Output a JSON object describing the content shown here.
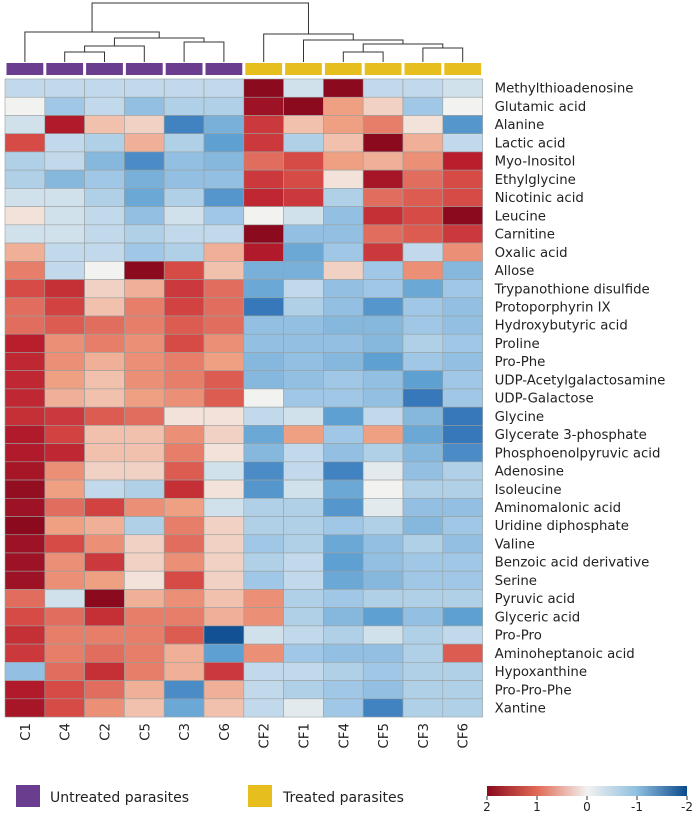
{
  "chart_data": {
    "type": "heatmap",
    "columns": [
      "C1",
      "C4",
      "C2",
      "C5",
      "C3",
      "C6",
      "CF2",
      "CF1",
      "CF4",
      "CF5",
      "CF3",
      "CF6"
    ],
    "column_groups": [
      "untreated",
      "untreated",
      "untreated",
      "untreated",
      "untreated",
      "untreated",
      "treated",
      "treated",
      "treated",
      "treated",
      "treated",
      "treated"
    ],
    "rows": [
      "Methylthioadenosine",
      "Glutamic acid",
      "Alanine",
      "Lactic acid",
      "Myo-Inositol",
      "Ethylglycine",
      "Nicotinic acid",
      "Leucine",
      "Carnitine",
      "Oxalic acid",
      "Allose",
      "Trypanothione disulfide",
      "Protoporphyrin IX",
      "Hydroxybutyric acid",
      "Proline",
      "Pro-Phe",
      "UDP-Acetylgalactosamine",
      "UDP-Galactose",
      "Glycine",
      "Glycerate 3-phosphate",
      "Phosphoenolpyruvic acid",
      "Adenosine",
      "Isoleucine",
      "Aminomalonic acid",
      "Uridine diphosphate",
      "Valine",
      "Benzoic acid derivative",
      "Serine",
      "Pyruvic acid",
      "Glyceric acid",
      "Pro-Pro",
      "Aminoheptanoic acid",
      "Hypoxanthine",
      "Pro-Pro-Phe",
      "Xantine"
    ],
    "values": [
      [
        -0.3,
        -0.3,
        -0.3,
        -0.3,
        -0.3,
        -0.3,
        2.0,
        -0.2,
        2.0,
        -0.3,
        -0.3,
        -0.2
      ],
      [
        0.0,
        -0.5,
        -0.3,
        -0.6,
        -0.4,
        -0.4,
        1.8,
        2.0,
        0.5,
        0.2,
        -0.5,
        0.0
      ],
      [
        -0.2,
        1.6,
        0.3,
        0.2,
        -1.3,
        -0.8,
        1.2,
        0.3,
        0.5,
        0.7,
        0.1,
        -1.1
      ],
      [
        1.0,
        -0.3,
        -0.4,
        0.4,
        -0.4,
        -1.0,
        1.2,
        -0.4,
        0.3,
        2.0,
        0.4,
        -0.3
      ],
      [
        -0.4,
        -0.3,
        -0.7,
        -1.2,
        -0.6,
        -0.7,
        0.8,
        1.0,
        0.5,
        0.4,
        0.6,
        1.5
      ],
      [
        -0.4,
        -0.7,
        -0.5,
        -0.8,
        -0.6,
        -0.6,
        1.2,
        1.0,
        0.1,
        1.7,
        0.8,
        1.0
      ],
      [
        -0.2,
        -0.2,
        -0.4,
        -0.9,
        -0.4,
        -1.1,
        1.4,
        1.2,
        -0.4,
        0.8,
        0.9,
        1.0
      ],
      [
        0.1,
        -0.2,
        -0.3,
        -0.6,
        -0.2,
        -0.5,
        0.0,
        -0.2,
        -0.6,
        1.3,
        1.0,
        2.0
      ],
      [
        -0.2,
        -0.2,
        -0.3,
        -0.4,
        -0.3,
        -0.3,
        2.0,
        -0.6,
        -0.6,
        0.8,
        0.9,
        1.2
      ],
      [
        0.4,
        -0.3,
        -0.3,
        -0.5,
        -0.4,
        0.4,
        1.6,
        -0.9,
        -0.5,
        1.2,
        -0.3,
        0.6
      ],
      [
        0.7,
        -0.3,
        0.0,
        2.0,
        1.0,
        0.3,
        -0.8,
        -0.8,
        0.2,
        -0.5,
        0.6,
        -0.7
      ],
      [
        1.0,
        1.3,
        0.2,
        0.4,
        1.2,
        0.8,
        -0.9,
        -0.3,
        -0.6,
        -0.5,
        -0.9,
        -0.5
      ],
      [
        0.8,
        1.1,
        0.3,
        0.7,
        1.1,
        0.8,
        -1.4,
        -0.4,
        -0.6,
        -1.1,
        -0.5,
        -0.6
      ],
      [
        0.8,
        0.9,
        0.8,
        0.7,
        0.9,
        0.8,
        -0.6,
        -0.6,
        -0.7,
        -0.7,
        -0.5,
        -0.6
      ],
      [
        1.5,
        0.6,
        0.7,
        0.6,
        1.0,
        0.6,
        -0.6,
        -0.6,
        -0.6,
        -0.7,
        -0.4,
        -0.5
      ],
      [
        1.4,
        0.6,
        0.4,
        0.6,
        0.7,
        0.5,
        -0.7,
        -0.6,
        -0.7,
        -1.0,
        -0.5,
        -0.6
      ],
      [
        1.4,
        0.5,
        0.3,
        0.6,
        0.7,
        0.9,
        -0.7,
        -0.6,
        -0.5,
        -0.6,
        -1.0,
        -0.5
      ],
      [
        1.4,
        0.4,
        0.3,
        0.5,
        0.6,
        0.9,
        0.0,
        -0.5,
        -0.5,
        -0.6,
        -1.4,
        -0.5
      ],
      [
        1.3,
        1.2,
        0.9,
        0.8,
        0.1,
        0.1,
        -0.3,
        -0.2,
        -1.0,
        -0.3,
        -0.7,
        -1.4
      ],
      [
        1.6,
        1.1,
        0.3,
        0.3,
        0.6,
        0.2,
        -0.9,
        0.5,
        -0.5,
        0.5,
        -0.9,
        -1.4
      ],
      [
        1.6,
        1.4,
        0.3,
        0.3,
        0.7,
        0.1,
        -0.7,
        -0.3,
        -0.6,
        -0.4,
        -0.7,
        -1.2
      ],
      [
        1.7,
        0.6,
        0.2,
        0.2,
        0.9,
        -0.2,
        -1.2,
        -0.3,
        -1.3,
        -0.1,
        -0.6,
        -0.4
      ],
      [
        1.9,
        0.5,
        -0.3,
        -0.4,
        1.3,
        0.1,
        -1.1,
        -0.2,
        -0.9,
        0.0,
        -0.4,
        -0.4
      ],
      [
        1.8,
        0.8,
        1.1,
        0.6,
        0.5,
        -0.2,
        -0.4,
        -0.4,
        -1.1,
        -0.1,
        -0.6,
        -0.6
      ],
      [
        2.0,
        0.5,
        0.4,
        -0.4,
        0.7,
        0.2,
        -0.4,
        -0.4,
        -0.5,
        -0.4,
        -0.7,
        -0.5
      ],
      [
        1.8,
        1.0,
        0.6,
        0.2,
        0.8,
        0.2,
        -0.5,
        -0.4,
        -0.9,
        -0.6,
        -0.4,
        -0.6
      ],
      [
        1.8,
        0.6,
        1.2,
        0.2,
        0.6,
        0.2,
        -0.4,
        -0.3,
        -1.0,
        -0.6,
        -0.5,
        -0.5
      ],
      [
        1.8,
        0.6,
        0.5,
        0.1,
        1.0,
        0.2,
        -0.5,
        -0.3,
        -0.9,
        -0.7,
        -0.5,
        -0.5
      ],
      [
        0.8,
        -0.2,
        2.0,
        0.4,
        0.6,
        0.3,
        0.6,
        -0.4,
        -0.5,
        -0.4,
        -0.4,
        -0.4
      ],
      [
        1.0,
        0.8,
        1.3,
        0.7,
        0.7,
        0.4,
        0.6,
        -0.4,
        -0.7,
        -1.0,
        -0.6,
        -1.0
      ],
      [
        1.3,
        0.7,
        0.7,
        0.7,
        0.9,
        -1.9,
        -0.2,
        -0.3,
        -0.4,
        -0.2,
        -0.4,
        -0.3
      ],
      [
        1.2,
        0.7,
        0.8,
        0.7,
        0.4,
        -1.0,
        0.6,
        -0.5,
        -0.6,
        -0.6,
        -0.4,
        0.9
      ],
      [
        -0.6,
        0.8,
        1.3,
        0.7,
        0.4,
        1.2,
        -0.3,
        -0.3,
        -0.4,
        -0.5,
        -0.4,
        -0.4
      ],
      [
        1.6,
        1.0,
        0.8,
        0.4,
        -1.2,
        0.4,
        -0.3,
        -0.4,
        -0.5,
        -0.6,
        -0.4,
        -0.4
      ],
      [
        1.7,
        1.0,
        0.6,
        0.3,
        -0.9,
        0.3,
        -0.3,
        -0.1,
        -0.5,
        -1.3,
        -0.4,
        -0.4
      ]
    ],
    "color_scale": {
      "min": -2,
      "max": 2,
      "low_color": "#0b4a8b",
      "mid_color": "#f2f2f0",
      "high_color": "#8b0a1e"
    },
    "scale_ticks": [
      "2",
      "1",
      "0",
      "-1",
      "-2"
    ],
    "scale_tick_values": [
      2,
      1,
      0,
      -1,
      -2
    ],
    "group_legend": [
      {
        "key": "untreated",
        "label": "Untreated parasites",
        "color": "#6a3d8f"
      },
      {
        "key": "treated",
        "label": "Treated parasites",
        "color": "#e6bf1e"
      }
    ],
    "dendrogram": "hierarchical clustering of columns shown above heatmap"
  }
}
